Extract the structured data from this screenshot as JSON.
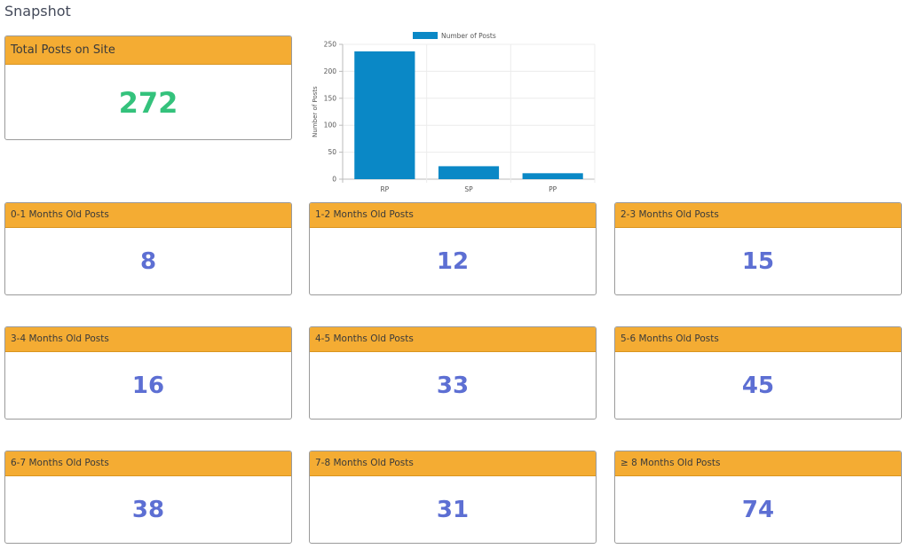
{
  "page": {
    "title": "Snapshot"
  },
  "total_card": {
    "label": "Total Posts on Site",
    "value": "272"
  },
  "month_cards": [
    {
      "label": "0-1 Months Old Posts",
      "value": "8"
    },
    {
      "label": "1-2 Months Old Posts",
      "value": "12"
    },
    {
      "label": "2-3 Months Old Posts",
      "value": "15"
    },
    {
      "label": "3-4 Months Old Posts",
      "value": "16"
    },
    {
      "label": "4-5 Months Old Posts",
      "value": "33"
    },
    {
      "label": "5-6 Months Old Posts",
      "value": "45"
    },
    {
      "label": "6-7 Months Old Posts",
      "value": "38"
    },
    {
      "label": "7-8 Months Old Posts",
      "value": "31"
    },
    {
      "label": "≥ 8 Months Old Posts",
      "value": "74"
    }
  ],
  "colors": {
    "header": "#f4ac33",
    "total_value": "#34c27c",
    "month_value": "#5d6fd3",
    "bar": "#0a88c6"
  },
  "chart_data": {
    "type": "bar",
    "categories": [
      "RP",
      "SP",
      "PP"
    ],
    "series": [
      {
        "name": "Number of Posts",
        "values": [
          237,
          24,
          11
        ]
      }
    ],
    "ylabel": "Number of Posts",
    "ylim": [
      0,
      250
    ],
    "yticks": [
      0,
      50,
      100,
      150,
      200,
      250
    ],
    "legend": "top",
    "grid": true
  }
}
